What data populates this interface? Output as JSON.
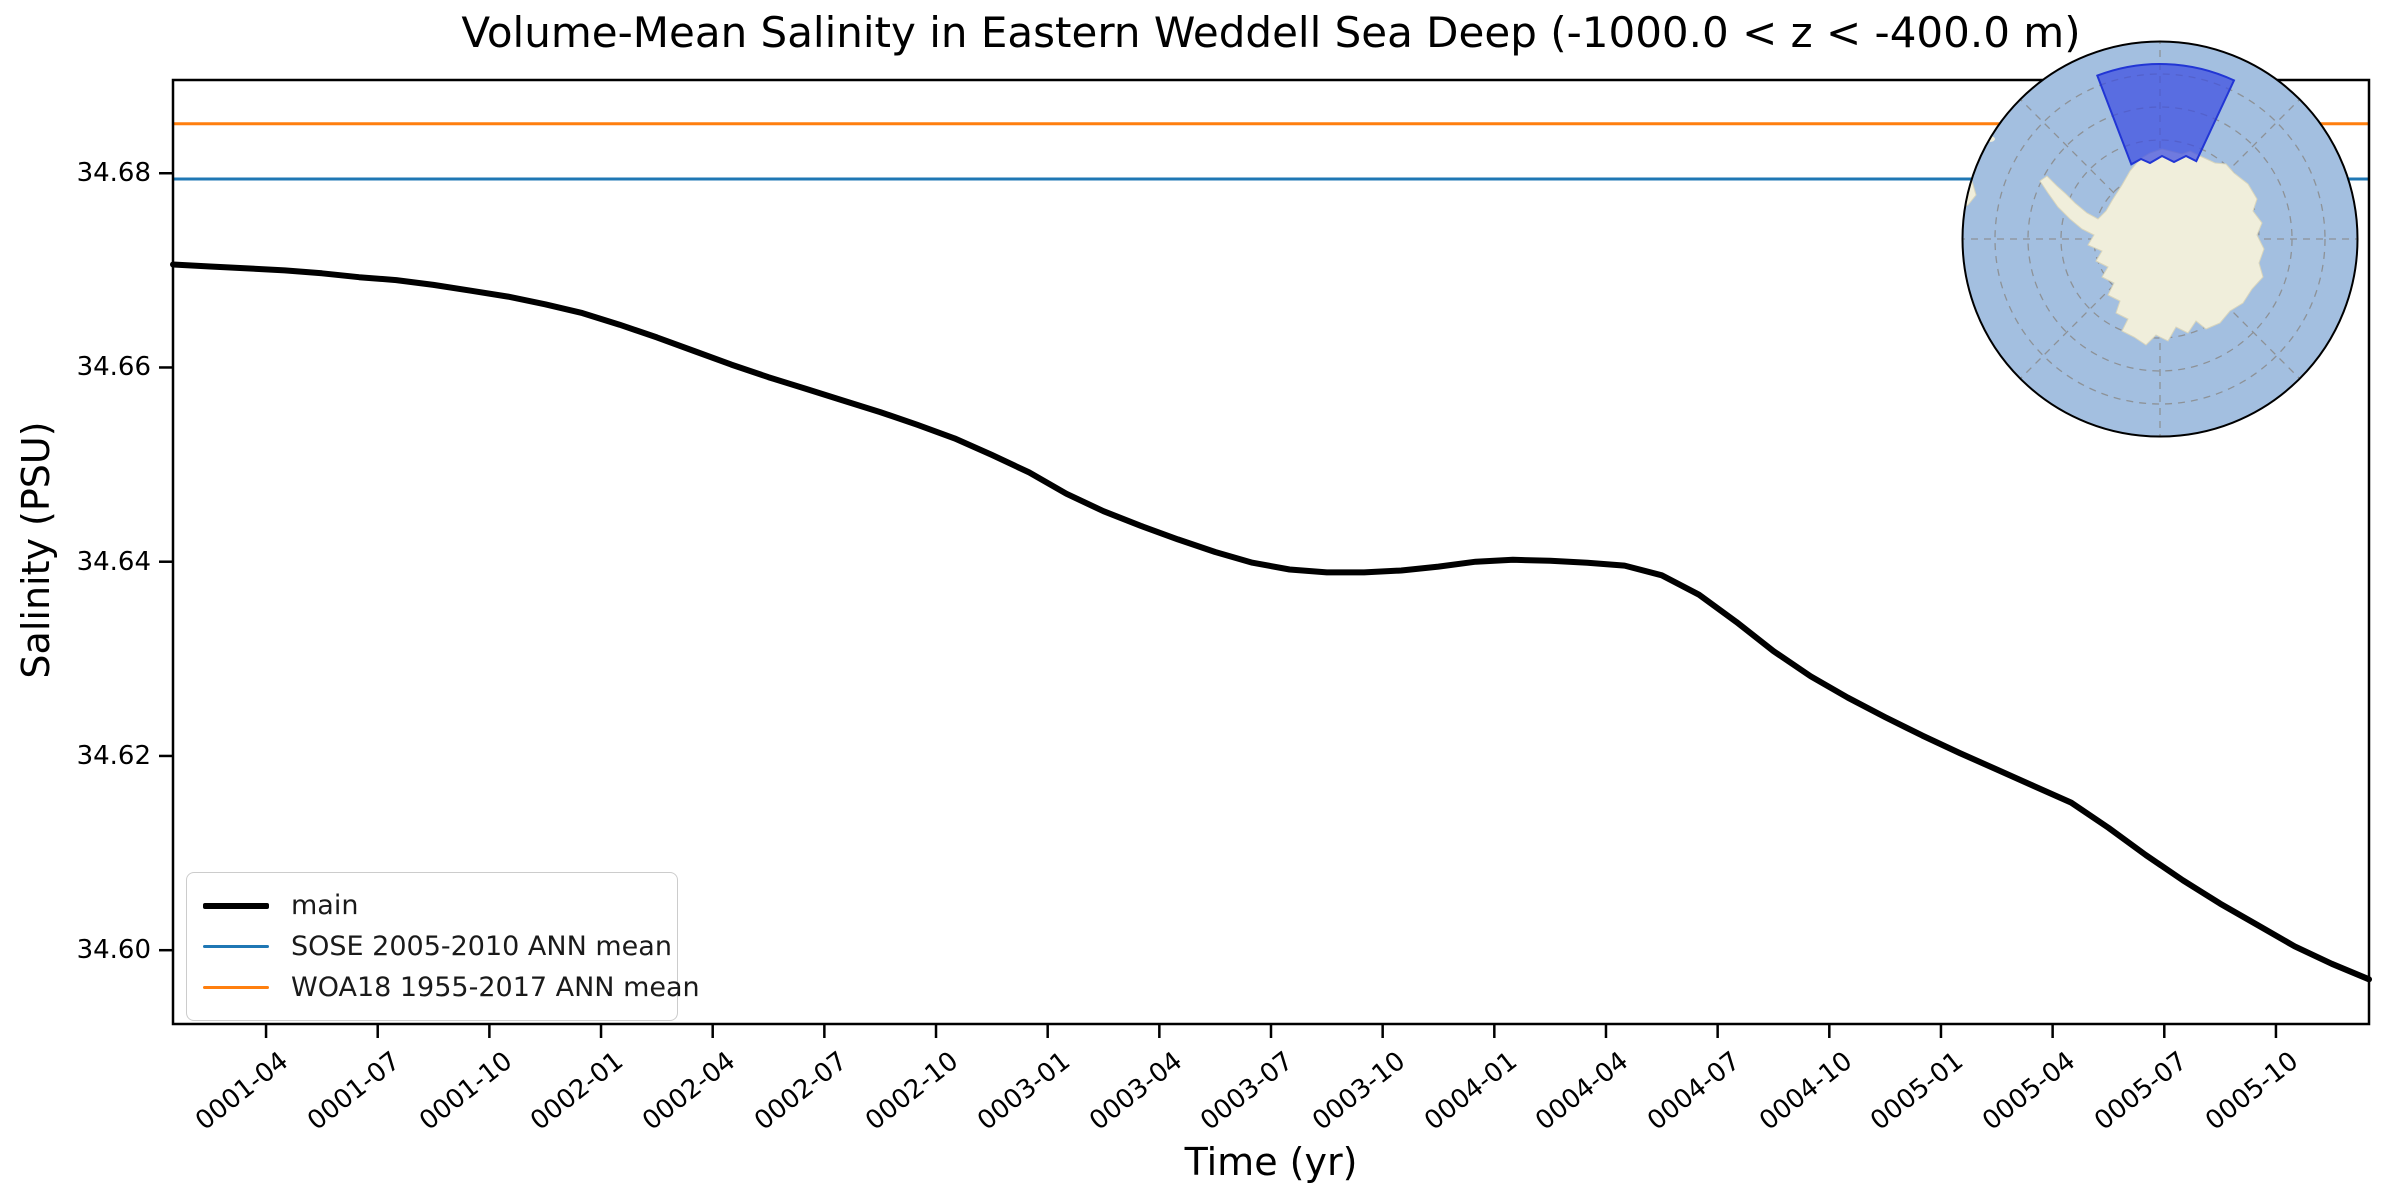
{
  "title": "Volume-Mean Salinity in Eastern Weddell Sea Deep (-1000.0 < z < -400.0 m)",
  "xlabel": "Time (yr)",
  "ylabel": "Salinity (PSU)",
  "legend": [
    {
      "label": "main",
      "color": "#000000",
      "line_height": 6
    },
    {
      "label": "SOSE 2005-2010 ANN mean",
      "color": "#1f77b4",
      "line_height": 3
    },
    {
      "label": "WOA18 1955-2017 ANN mean",
      "color": "#ff7f0e",
      "line_height": 3
    }
  ],
  "chart_data": {
    "type": "line",
    "title": "Volume-Mean Salinity in Eastern Weddell Sea Deep (-1000.0 < z < -400.0 m)",
    "xlabel": "Time (yr)",
    "ylabel": "Salinity (PSU)",
    "grid": false,
    "legend_position": "lower left",
    "ylim": [
      34.5924,
      34.6896
    ],
    "y_ticks": [
      34.68,
      34.66,
      34.64,
      34.62,
      34.6
    ],
    "xlim_months": [
      0.5,
      59.5
    ],
    "x_tick_months": [
      3,
      6,
      9,
      12,
      15,
      18,
      21,
      24,
      27,
      30,
      33,
      36,
      39,
      42,
      45,
      48,
      51,
      54,
      57
    ],
    "x_tick_labels": [
      "0001-04",
      "0001-07",
      "0001-10",
      "0002-01",
      "0002-04",
      "0002-07",
      "0002-10",
      "0003-01",
      "0003-04",
      "0003-07",
      "0003-10",
      "0004-01",
      "0004-04",
      "0004-07",
      "0004-10",
      "0005-01",
      "0005-04",
      "0005-07",
      "0005-10"
    ],
    "series": [
      {
        "name": "main",
        "type": "line",
        "color": "#000000",
        "width": 6,
        "months": [
          "0001-01",
          "0001-02",
          "0001-03",
          "0001-04",
          "0001-05",
          "0001-06",
          "0001-07",
          "0001-08",
          "0001-09",
          "0001-10",
          "0001-11",
          "0001-12",
          "0002-01",
          "0002-02",
          "0002-03",
          "0002-04",
          "0002-05",
          "0002-06",
          "0002-07",
          "0002-08",
          "0002-09",
          "0002-10",
          "0002-11",
          "0002-12",
          "0003-01",
          "0003-02",
          "0003-03",
          "0003-04",
          "0003-05",
          "0003-06",
          "0003-07",
          "0003-08",
          "0003-09",
          "0003-10",
          "0003-11",
          "0003-12",
          "0004-01",
          "0004-02",
          "0004-03",
          "0004-04",
          "0004-05",
          "0004-06",
          "0004-07",
          "0004-08",
          "0004-09",
          "0004-10",
          "0004-11",
          "0004-12",
          "0005-01",
          "0005-02",
          "0005-03",
          "0005-04",
          "0005-05",
          "0005-06",
          "0005-07",
          "0005-08",
          "0005-09",
          "0005-10",
          "0005-11",
          "0005-12"
        ],
        "values": [
          34.6706,
          34.6704,
          34.6702,
          34.67,
          34.6697,
          34.6693,
          34.669,
          34.6685,
          34.6679,
          34.6673,
          34.6665,
          34.6656,
          34.6644,
          34.6631,
          34.6617,
          34.6603,
          34.659,
          34.6578,
          34.6566,
          34.6554,
          34.6541,
          34.6527,
          34.651,
          34.6492,
          34.647,
          34.6452,
          34.6437,
          34.6423,
          34.641,
          34.6399,
          34.6392,
          34.6389,
          34.6389,
          34.6391,
          34.6395,
          34.64,
          34.6402,
          34.6401,
          34.6399,
          34.6396,
          34.6386,
          34.6366,
          34.6338,
          34.6308,
          34.6282,
          34.626,
          34.624,
          34.6221,
          34.6203,
          34.6186,
          34.6169,
          34.6152,
          34.6126,
          34.6098,
          34.6072,
          34.6048,
          34.6026,
          34.6004,
          34.5986,
          34.597
        ]
      },
      {
        "name": "SOSE 2005-2010 ANN mean",
        "type": "hline",
        "color": "#1f77b4",
        "width": 3,
        "value": 34.6794
      },
      {
        "name": "WOA18 1955-2017 ANN mean",
        "type": "hline",
        "color": "#ff7f0e",
        "width": 3,
        "value": 34.6851
      }
    ]
  },
  "inset_map": {
    "kind": "south-polar-stereographic-map",
    "region_label": "Eastern Weddell Sea sector",
    "ocean_color": "#a3bfe0",
    "land_color": "#f0eedb",
    "region_fill": "#3d4ee0",
    "region_edge": "#2236d4",
    "graticule_color": "#8a8a8a",
    "outline_color": "#000000"
  }
}
